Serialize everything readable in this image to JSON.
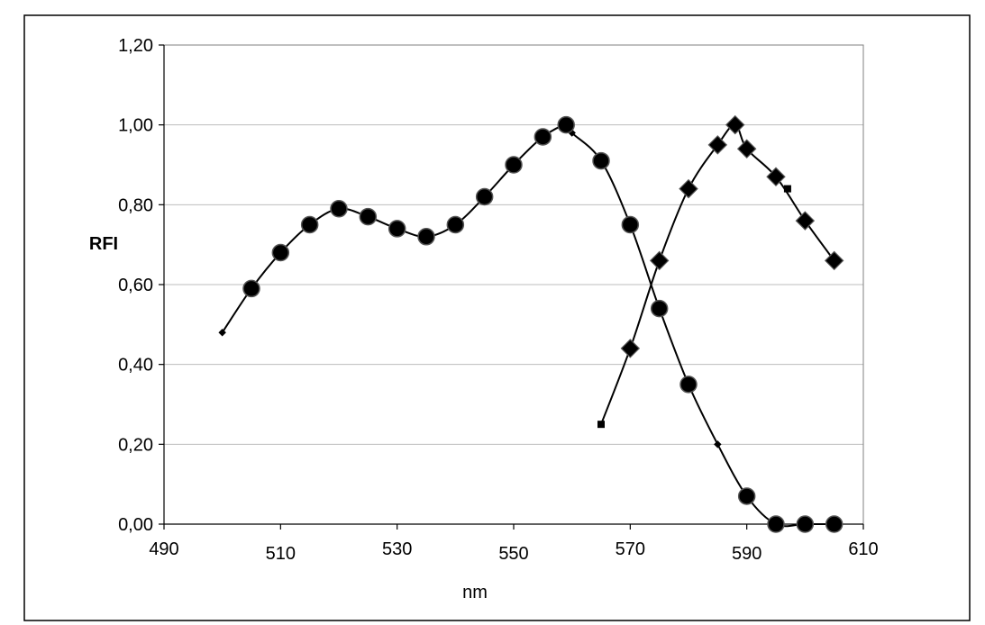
{
  "chart_data": {
    "type": "line",
    "title": "",
    "xlabel": "nm",
    "ylabel": "RFI",
    "xlim": [
      490,
      610
    ],
    "ylim": [
      0,
      1.2
    ],
    "x_ticks": [
      "490",
      "510",
      "530",
      "550",
      "570",
      "590",
      "610"
    ],
    "x_tick_values": [
      490,
      510,
      530,
      550,
      570,
      590,
      610
    ],
    "y_ticks": [
      "0,00",
      "0,20",
      "0,40",
      "0,60",
      "0,80",
      "1,00",
      "1,20"
    ],
    "y_tick_values": [
      0,
      0.2,
      0.4,
      0.6,
      0.8,
      1.0,
      1.2
    ],
    "grid": "horizontal",
    "legend": "none",
    "colors": {
      "line": "#000000",
      "grid": "#bdbdbd",
      "frame": "#000000",
      "plot_border": "#808080"
    },
    "series": [
      {
        "marker": "circle",
        "curve": [
          [
            500,
            0.48
          ],
          [
            505,
            0.59
          ],
          [
            510,
            0.68
          ],
          [
            515,
            0.75
          ],
          [
            520,
            0.79
          ],
          [
            525,
            0.77
          ],
          [
            530,
            0.74
          ],
          [
            535,
            0.72
          ],
          [
            540,
            0.75
          ],
          [
            545,
            0.82
          ],
          [
            550,
            0.9
          ],
          [
            555,
            0.97
          ],
          [
            559,
            1.0
          ],
          [
            560,
            0.98
          ],
          [
            565,
            0.91
          ],
          [
            570,
            0.75
          ],
          [
            575,
            0.54
          ],
          [
            580,
            0.35
          ],
          [
            585,
            0.2
          ],
          [
            590,
            0.07
          ],
          [
            595,
            0.0
          ],
          [
            600,
            0.0
          ],
          [
            605,
            0.0
          ]
        ],
        "markers": [
          [
            505,
            0.59
          ],
          [
            510,
            0.68
          ],
          [
            515,
            0.75
          ],
          [
            520,
            0.79
          ],
          [
            525,
            0.77
          ],
          [
            530,
            0.74
          ],
          [
            535,
            0.72
          ],
          [
            540,
            0.75
          ],
          [
            545,
            0.82
          ],
          [
            550,
            0.9
          ],
          [
            555,
            0.97
          ],
          [
            559,
            1.0
          ],
          [
            565,
            0.91
          ],
          [
            570,
            0.75
          ],
          [
            575,
            0.54
          ],
          [
            580,
            0.35
          ],
          [
            590,
            0.07
          ],
          [
            595,
            0.0
          ],
          [
            600,
            0.0
          ],
          [
            605,
            0.0
          ]
        ],
        "small_markers": [
          [
            500,
            0.48
          ],
          [
            560,
            0.98
          ],
          [
            585,
            0.2
          ]
        ]
      },
      {
        "marker": "diamond",
        "curve": [
          [
            565,
            0.25
          ],
          [
            570,
            0.44
          ],
          [
            575,
            0.66
          ],
          [
            580,
            0.84
          ],
          [
            585,
            0.95
          ],
          [
            588,
            1.0
          ],
          [
            590,
            0.94
          ],
          [
            595,
            0.87
          ],
          [
            600,
            0.76
          ],
          [
            605,
            0.66
          ]
        ],
        "markers": [
          [
            570,
            0.44
          ],
          [
            575,
            0.66
          ],
          [
            580,
            0.84
          ],
          [
            585,
            0.95
          ],
          [
            588,
            1.0
          ],
          [
            590,
            0.94
          ],
          [
            595,
            0.87
          ],
          [
            600,
            0.76
          ],
          [
            605,
            0.66
          ]
        ],
        "small_markers": [
          [
            565,
            0.25
          ],
          [
            597,
            0.84
          ]
        ]
      }
    ]
  }
}
